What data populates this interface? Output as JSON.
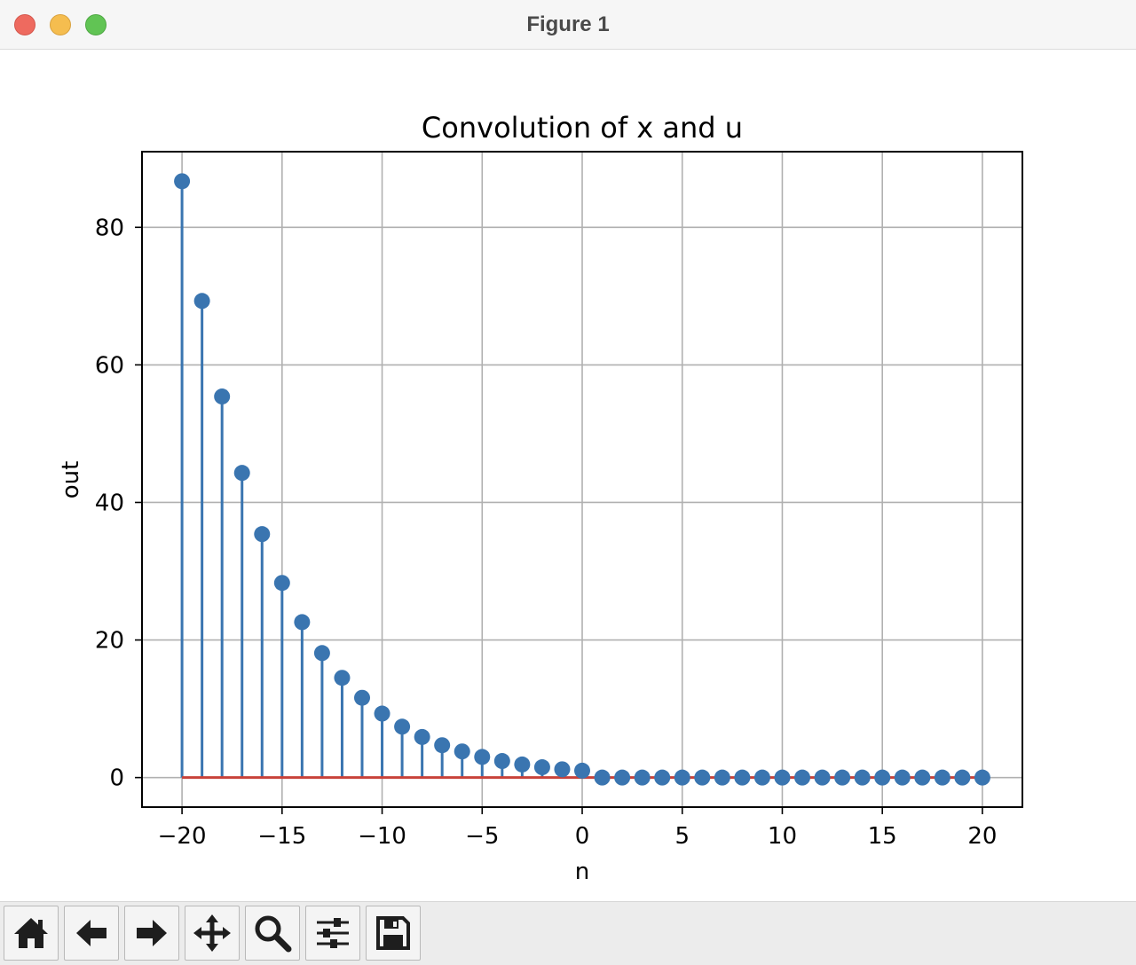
{
  "window": {
    "title": "Figure 1"
  },
  "toolbar": {
    "buttons": [
      {
        "name": "home-button",
        "icon": "home-icon"
      },
      {
        "name": "back-button",
        "icon": "arrow-left-icon"
      },
      {
        "name": "forward-button",
        "icon": "arrow-right-icon"
      },
      {
        "name": "pan-button",
        "icon": "move-arrows-icon"
      },
      {
        "name": "zoom-button",
        "icon": "magnifier-icon"
      },
      {
        "name": "configure-subplots-button",
        "icon": "sliders-icon"
      },
      {
        "name": "save-button",
        "icon": "floppy-disk-icon"
      }
    ]
  },
  "chart_data": {
    "type": "stem",
    "title": "Convolution of x and u",
    "xlabel": "n",
    "ylabel": "out",
    "xlim": [
      -22,
      22
    ],
    "ylim": [
      -4.3,
      91
    ],
    "xticks": [
      -20,
      -15,
      -10,
      -5,
      0,
      5,
      10,
      15,
      20
    ],
    "xtick_labels": [
      "−20",
      "−15",
      "−10",
      "−5",
      "0",
      "5",
      "10",
      "15",
      "20"
    ],
    "yticks": [
      0,
      20,
      40,
      60,
      80
    ],
    "ytick_labels": [
      "0",
      "20",
      "40",
      "60",
      "80"
    ],
    "grid": true,
    "colors": {
      "stem": "#3a75b0",
      "baseline": "#c8423a",
      "grid": "#b0b0b0"
    },
    "x": [
      -20,
      -19,
      -18,
      -17,
      -16,
      -15,
      -14,
      -13,
      -12,
      -11,
      -10,
      -9,
      -8,
      -7,
      -6,
      -5,
      -4,
      -3,
      -2,
      -1,
      0,
      1,
      2,
      3,
      4,
      5,
      6,
      7,
      8,
      9,
      10,
      11,
      12,
      13,
      14,
      15,
      16,
      17,
      18,
      19,
      20
    ],
    "y": [
      86.7,
      69.3,
      55.4,
      44.3,
      35.4,
      28.3,
      22.6,
      18.1,
      14.5,
      11.6,
      9.3,
      7.4,
      5.9,
      4.7,
      3.8,
      3.0,
      2.4,
      1.9,
      1.5,
      1.2,
      1.0,
      0,
      0,
      0,
      0,
      0,
      0,
      0,
      0,
      0,
      0,
      0,
      0,
      0,
      0,
      0,
      0,
      0,
      0,
      0,
      0
    ]
  }
}
